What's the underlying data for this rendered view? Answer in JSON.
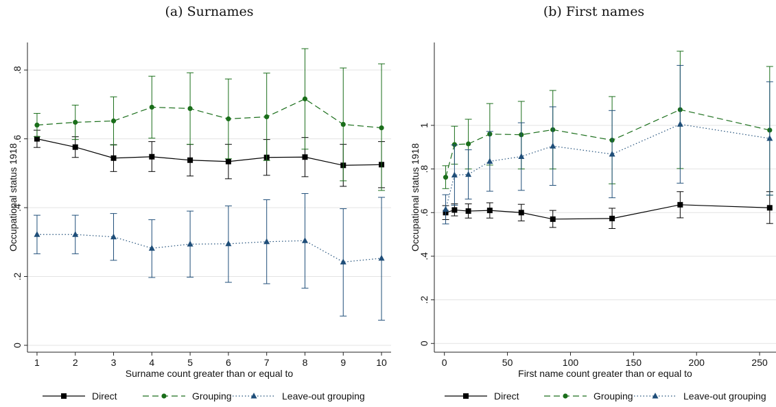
{
  "panels": [
    {
      "title": "(a) Surnames"
    },
    {
      "title": "(b) First names"
    }
  ],
  "chart_data": [
    {
      "type": "line",
      "title": "(a) Surnames",
      "xlabel": "Surname count greater than or equal to",
      "ylabel": "Occupational status 1918",
      "xlim": [
        0.75,
        10.25
      ],
      "ylim": [
        -0.02,
        0.88
      ],
      "xticks": [
        1,
        2,
        3,
        4,
        5,
        6,
        7,
        8,
        9,
        10
      ],
      "yticks": [
        0,
        0.2,
        0.4,
        0.6,
        0.8
      ],
      "ytick_labels": [
        "0",
        ".2",
        ".4",
        ".6",
        ".8"
      ],
      "grid": true,
      "legend": "bottom",
      "x": [
        1,
        2,
        3,
        4,
        5,
        6,
        7,
        8,
        9,
        10
      ],
      "series": [
        {
          "name": "Direct",
          "color": "#000000",
          "marker": "square",
          "dash": "solid",
          "values": [
            0.6,
            0.576,
            0.544,
            0.548,
            0.538,
            0.534,
            0.546,
            0.547,
            0.523,
            0.525
          ],
          "lower": [
            0.575,
            0.546,
            0.505,
            0.505,
            0.492,
            0.484,
            0.494,
            0.49,
            0.462,
            0.458
          ],
          "upper": [
            0.625,
            0.606,
            0.583,
            0.592,
            0.584,
            0.584,
            0.598,
            0.604,
            0.584,
            0.592
          ]
        },
        {
          "name": "Grouping",
          "color": "#1a6e1a",
          "marker": "circle",
          "dash": "dashed",
          "values": [
            0.64,
            0.648,
            0.652,
            0.692,
            0.688,
            0.658,
            0.664,
            0.716,
            0.642,
            0.632
          ],
          "lower": [
            0.606,
            0.598,
            0.582,
            0.602,
            0.584,
            0.542,
            0.537,
            0.57,
            0.478,
            0.45
          ],
          "upper": [
            0.674,
            0.698,
            0.722,
            0.782,
            0.792,
            0.774,
            0.791,
            0.862,
            0.806,
            0.818
          ]
        },
        {
          "name": "Leave-out grouping",
          "color": "#1f4e79",
          "marker": "triangle",
          "dash": "dotted",
          "values": [
            0.322,
            0.322,
            0.315,
            0.282,
            0.294,
            0.295,
            0.301,
            0.304,
            0.242,
            0.253
          ],
          "lower": [
            0.266,
            0.266,
            0.247,
            0.197,
            0.198,
            0.183,
            0.179,
            0.166,
            0.085,
            0.073
          ],
          "upper": [
            0.378,
            0.378,
            0.383,
            0.365,
            0.39,
            0.405,
            0.423,
            0.441,
            0.397,
            0.43
          ]
        }
      ]
    },
    {
      "type": "line",
      "title": "(b) First names",
      "xlabel": "First name count greater than or equal to",
      "ylabel": "Occupational status 1918",
      "xlim": [
        -8,
        263
      ],
      "ylim": [
        -0.04,
        1.38
      ],
      "xticks": [
        0,
        50,
        100,
        150,
        200,
        250
      ],
      "yticks": [
        0,
        0.2,
        0.4,
        0.6,
        0.8,
        1
      ],
      "ytick_labels": [
        "0",
        ".2",
        ".4",
        ".6",
        ".8",
        "1"
      ],
      "grid": true,
      "legend": "bottom",
      "x": [
        1,
        8,
        19,
        36,
        61,
        86,
        133,
        187,
        258
      ],
      "series": [
        {
          "name": "Direct",
          "color": "#000000",
          "marker": "square",
          "dash": "solid",
          "values": [
            0.6,
            0.612,
            0.607,
            0.61,
            0.6,
            0.57,
            0.573,
            0.636,
            0.622
          ],
          "lower": [
            0.568,
            0.585,
            0.575,
            0.575,
            0.562,
            0.532,
            0.527,
            0.576,
            0.55
          ],
          "upper": [
            0.632,
            0.64,
            0.64,
            0.645,
            0.638,
            0.61,
            0.62,
            0.696,
            0.696
          ]
        },
        {
          "name": "Grouping",
          "color": "#1a6e1a",
          "marker": "circle",
          "dash": "dashed",
          "values": [
            0.762,
            0.912,
            0.915,
            0.96,
            0.957,
            0.98,
            0.932,
            1.072,
            0.978
          ],
          "lower": [
            0.71,
            0.822,
            0.8,
            0.818,
            0.8,
            0.8,
            0.732,
            0.802,
            0.68
          ],
          "upper": [
            0.815,
            0.996,
            1.028,
            1.1,
            1.11,
            1.16,
            1.132,
            1.34,
            1.27
          ]
        },
        {
          "name": "Leave-out grouping",
          "color": "#1f4e79",
          "marker": "triangle",
          "dash": "dotted",
          "values": [
            0.615,
            0.772,
            0.775,
            0.835,
            0.857,
            0.905,
            0.868,
            1.005,
            0.94
          ],
          "lower": [
            0.548,
            0.634,
            0.662,
            0.698,
            0.702,
            0.725,
            0.668,
            0.735,
            0.68
          ],
          "upper": [
            0.682,
            0.91,
            0.888,
            0.972,
            1.012,
            1.085,
            1.068,
            1.275,
            1.2
          ]
        }
      ]
    }
  ]
}
